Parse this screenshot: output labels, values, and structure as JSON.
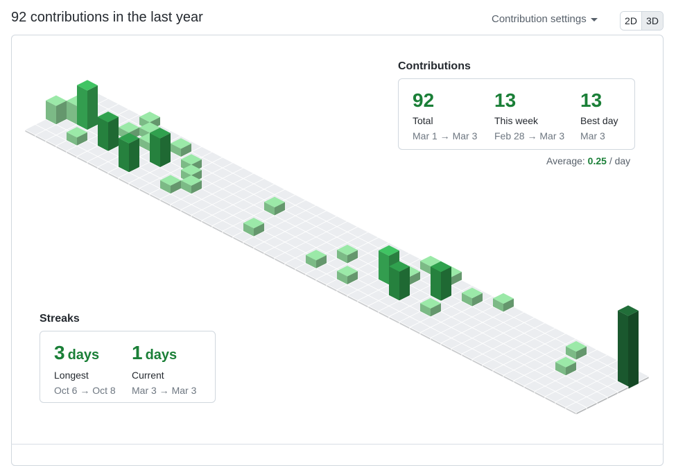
{
  "header": {
    "title": "92 contributions in the last year",
    "settings_label": "Contribution settings",
    "toggle_2d": "2D",
    "toggle_3d": "3D"
  },
  "contributions": {
    "heading": "Contributions",
    "total": {
      "value": "92",
      "label": "Total",
      "range": "Mar 1 → Mar 3"
    },
    "this_week": {
      "value": "13",
      "label": "This week",
      "range": "Feb 28 → Mar 3"
    },
    "best_day": {
      "value": "13",
      "label": "Best day",
      "range": "Mar 3"
    },
    "average_label": "Average:",
    "average_value": "0.25",
    "average_unit": "/ day"
  },
  "streaks": {
    "heading": "Streaks",
    "longest": {
      "value": "3",
      "unit": "days",
      "label": "Longest",
      "range": "Oct 6 → Oct 8"
    },
    "current": {
      "value": "1",
      "unit": "days",
      "label": "Current",
      "range": "Mar 3 → Mar 3"
    }
  },
  "colors": {
    "empty": "#ebedf0",
    "level1": "#9be9a8",
    "level2": "#40c463",
    "level3": "#30a14e",
    "level4": "#216e39",
    "accent": "#1a7f37"
  },
  "chart_data": {
    "type": "heatmap",
    "weeks": 53,
    "days_per_week": 7,
    "cells": [
      {
        "w": 0,
        "d": 2,
        "level": 1,
        "height": 2
      },
      {
        "w": 1,
        "d": 3,
        "level": 1,
        "height": 2
      },
      {
        "w": 2,
        "d": 3,
        "level": 2,
        "height": 4
      },
      {
        "w": 3,
        "d": 4,
        "level": 1,
        "height": 1
      },
      {
        "w": 3,
        "d": 1,
        "level": 1,
        "height": 1
      },
      {
        "w": 4,
        "d": 3,
        "level": 1,
        "height": 1
      },
      {
        "w": 5,
        "d": 2,
        "level": 3,
        "height": 3
      },
      {
        "w": 5,
        "d": 4,
        "level": 1,
        "height": 1
      },
      {
        "w": 5,
        "d": 6,
        "level": 1,
        "height": 1
      },
      {
        "w": 6,
        "d": 5,
        "level": 1,
        "height": 1
      },
      {
        "w": 7,
        "d": 4,
        "level": 1,
        "height": 1
      },
      {
        "w": 7,
        "d": 2,
        "level": 1,
        "height": 1
      },
      {
        "w": 8,
        "d": 1,
        "level": 3,
        "height": 3
      },
      {
        "w": 9,
        "d": 5,
        "level": 1,
        "height": 1
      },
      {
        "w": 9,
        "d": 3,
        "level": 3,
        "height": 3
      },
      {
        "w": 11,
        "d": 4,
        "level": 1,
        "height": 1
      },
      {
        "w": 12,
        "d": 1,
        "level": 1,
        "height": 1
      },
      {
        "w": 12,
        "d": 3,
        "level": 1,
        "height": 1
      },
      {
        "w": 13,
        "d": 2,
        "level": 1,
        "height": 1
      },
      {
        "w": 19,
        "d": 4,
        "level": 1,
        "height": 1
      },
      {
        "w": 20,
        "d": 1,
        "level": 1,
        "height": 1
      },
      {
        "w": 26,
        "d": 1,
        "level": 1,
        "height": 1
      },
      {
        "w": 27,
        "d": 3,
        "level": 1,
        "height": 1
      },
      {
        "w": 29,
        "d": 1,
        "level": 1,
        "height": 1
      },
      {
        "w": 31,
        "d": 3,
        "level": 2,
        "height": 3
      },
      {
        "w": 32,
        "d": 4,
        "level": 1,
        "height": 1
      },
      {
        "w": 32,
        "d": 6,
        "level": 1,
        "height": 1
      },
      {
        "w": 33,
        "d": 2,
        "level": 3,
        "height": 3
      },
      {
        "w": 34,
        "d": 5,
        "level": 2,
        "height": 2
      },
      {
        "w": 34,
        "d": 6,
        "level": 1,
        "height": 1
      },
      {
        "w": 35,
        "d": 4,
        "level": 3,
        "height": 3
      },
      {
        "w": 36,
        "d": 2,
        "level": 1,
        "height": 1
      },
      {
        "w": 37,
        "d": 5,
        "level": 1,
        "height": 1
      },
      {
        "w": 39,
        "d": 6,
        "level": 1,
        "height": 1
      },
      {
        "w": 47,
        "d": 5,
        "level": 1,
        "height": 1
      },
      {
        "w": 48,
        "d": 3,
        "level": 1,
        "height": 1
      },
      {
        "w": 52,
        "d": 5,
        "level": 4,
        "height": 7
      }
    ]
  }
}
